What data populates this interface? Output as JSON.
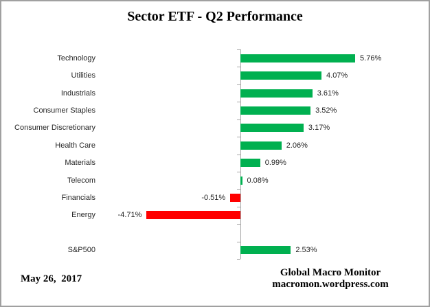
{
  "title": "Sector ETF - Q2 Performance",
  "footer": {
    "date": "May 26,  2017",
    "source_line1": "Global Macro Monitor",
    "source_line2": "macromon.wordpress.com"
  },
  "colors": {
    "positive_bar": "#00B050",
    "negative_bar": "#FF0000",
    "axis": "#a6a6a6",
    "label_text": "#262626"
  },
  "chart_data": {
    "type": "bar",
    "orientation": "horizontal",
    "title": "Sector ETF - Q2 Performance",
    "xlabel": "",
    "ylabel": "",
    "xlim": [
      -7,
      9.5
    ],
    "grid": false,
    "legend": false,
    "value_format": "percent",
    "categories": [
      "Technology",
      "Utilities",
      "Industrials",
      "Consumer Staples",
      "Consumer Discretionary",
      "Health Care",
      "Materials",
      "Telecom",
      "Financials",
      "Energy",
      "",
      "S&P500"
    ],
    "values": [
      5.76,
      4.07,
      3.61,
      3.52,
      3.17,
      2.06,
      0.99,
      0.08,
      -0.51,
      -4.71,
      null,
      2.53
    ],
    "value_labels": [
      "5.76%",
      "4.07%",
      "3.61%",
      "3.52%",
      "3.17%",
      "2.06%",
      "0.99%",
      "0.08%",
      "-0.51%",
      "-4.71%",
      "",
      "2.53%"
    ]
  }
}
